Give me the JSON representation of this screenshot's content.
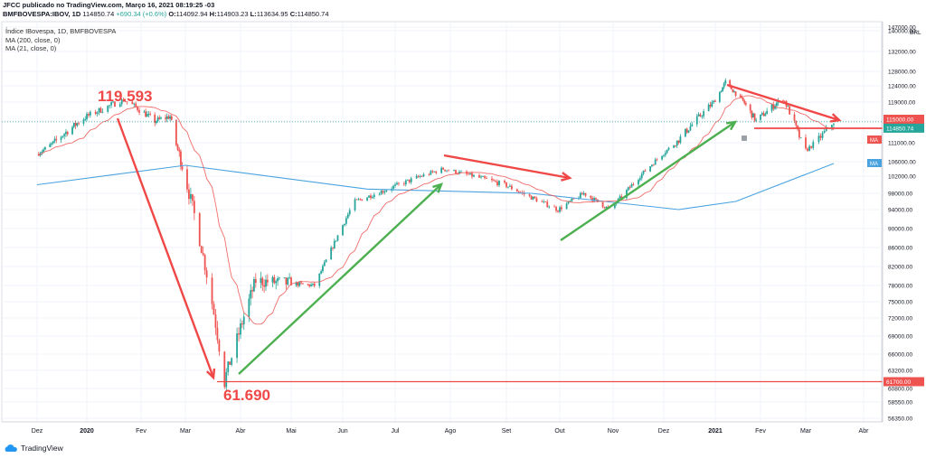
{
  "header": {
    "published": "JFCC publicado no TradingView.com, Março 16, 2021 08:19:25 -03",
    "symbol": "BMFBOVESPA:IBOV, 1D",
    "last": "114850.74",
    "change": "+690.34 (+0.6%)",
    "o_label": "O:",
    "o": "114092.94",
    "h_label": "H:",
    "h": "114903.23",
    "l_label": "L:",
    "l": "113634.95",
    "c_label": "C:",
    "c": "114850.74"
  },
  "legend": {
    "line1": "Índice IBovespa, 1D, BMFBOVESPA",
    "line2": "MA (200, close, 0)",
    "line3": "MA (21, close, 0)"
  },
  "footer": {
    "brand": "TradingView"
  },
  "colors": {
    "up": "#26a69a",
    "down": "#ef5350",
    "ma21": "#ef5350",
    "ma200": "#4aa3df",
    "annot_red": "#f04747",
    "annot_green": "#4caf50",
    "grid": "#f0f3fa"
  },
  "chart_data": {
    "type": "candlestick",
    "currency": "BRL",
    "y_ticks": [
      56350,
      58550,
      60800,
      63200,
      66000,
      69000,
      72000,
      75000,
      78000,
      82000,
      86000,
      90000,
      94000,
      98000,
      102000,
      106000,
      111000,
      115000,
      119000,
      124000,
      128000,
      132000,
      140000,
      147000
    ],
    "y_tick_labels": [
      "56350.00",
      "58550.00",
      "60800.00",
      "63200.00",
      "66000.00",
      "69000.00",
      "72000.00",
      "75000.00",
      "78000.00",
      "82000.00",
      "86000.00",
      "90000.00",
      "94000.00",
      "98000.00",
      "102000.00",
      "106000.00",
      "111000.00",
      "115000.00",
      "119000.00",
      "124000.00",
      "128000.00",
      "132000.00",
      "140000.00",
      "147000.00"
    ],
    "x_labels": [
      "Dez",
      "2020",
      "Fev",
      "Mar",
      "Abr",
      "Mai",
      "Jun",
      "Jul",
      "Ago",
      "Set",
      "Out",
      "Nov",
      "Dez",
      "2021",
      "Fev",
      "Mar",
      "Abr"
    ],
    "price_series": [
      {
        "d": "2019-12-01",
        "v": 108000
      },
      {
        "d": "2019-12-15",
        "v": 112000
      },
      {
        "d": "2020-01-01",
        "v": 116000
      },
      {
        "d": "2020-01-22",
        "v": 119593
      },
      {
        "d": "2020-02-10",
        "v": 115000
      },
      {
        "d": "2020-02-20",
        "v": 116000
      },
      {
        "d": "2020-02-28",
        "v": 105000
      },
      {
        "d": "2020-03-10",
        "v": 86000
      },
      {
        "d": "2020-03-23",
        "v": 61690
      },
      {
        "d": "2020-04-10",
        "v": 79000
      },
      {
        "d": "2020-05-15",
        "v": 78000
      },
      {
        "d": "2020-06-08",
        "v": 96000
      },
      {
        "d": "2020-07-28",
        "v": 104000
      },
      {
        "d": "2020-08-31",
        "v": 100000
      },
      {
        "d": "2020-09-30",
        "v": 94000
      },
      {
        "d": "2020-10-15",
        "v": 98000
      },
      {
        "d": "2020-10-30",
        "v": 94000
      },
      {
        "d": "2020-11-30",
        "v": 108000
      },
      {
        "d": "2020-12-31",
        "v": 119000
      },
      {
        "d": "2021-01-08",
        "v": 125000
      },
      {
        "d": "2021-01-29",
        "v": 115000
      },
      {
        "d": "2021-02-15",
        "v": 120000
      },
      {
        "d": "2021-03-01",
        "v": 109000
      },
      {
        "d": "2021-03-16",
        "v": 114850
      }
    ],
    "ma200_series": [
      {
        "d": "2019-12-01",
        "v": 100000
      },
      {
        "d": "2020-03-01",
        "v": 105000
      },
      {
        "d": "2020-06-15",
        "v": 99000
      },
      {
        "d": "2020-09-15",
        "v": 98000
      },
      {
        "d": "2020-12-10",
        "v": 94000
      },
      {
        "d": "2021-01-15",
        "v": 96000
      },
      {
        "d": "2021-03-16",
        "v": 105500
      }
    ],
    "price_labels": [
      {
        "text": "115000.00",
        "value": 115000,
        "color": "#ef5350"
      },
      {
        "text": "114850.74",
        "value": 114850.74,
        "color": "#26a69a"
      },
      {
        "text": "MA",
        "value": 111500,
        "color": "#ef5350"
      },
      {
        "text": "MA",
        "value": 105500,
        "color": "#4aa3df"
      },
      {
        "text": "61700.00",
        "value": 61700,
        "color": "#ef5350"
      }
    ],
    "annotations": {
      "high_label": "119.593",
      "low_label": "61.690",
      "resistance_level": 115000,
      "support_level": 61700
    }
  }
}
